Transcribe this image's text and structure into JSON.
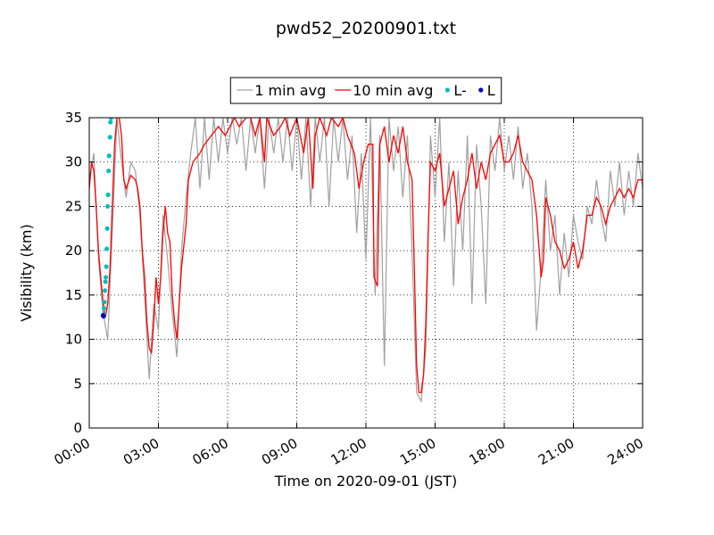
{
  "chart_data": {
    "type": "line",
    "title": "pwd52_20200901.txt",
    "xlabel": "Time on 2020-09-01 (JST)",
    "ylabel": "Visibility (km)",
    "xlim": [
      0,
      24
    ],
    "ylim": [
      0,
      35
    ],
    "xticks": [
      {
        "value": 0,
        "label": "00:00"
      },
      {
        "value": 3,
        "label": "03:00"
      },
      {
        "value": 6,
        "label": "06:00"
      },
      {
        "value": 9,
        "label": "09:00"
      },
      {
        "value": 12,
        "label": "12:00"
      },
      {
        "value": 15,
        "label": "15:00"
      },
      {
        "value": 18,
        "label": "18:00"
      },
      {
        "value": 21,
        "label": "21:00"
      },
      {
        "value": 24,
        "label": "24:00"
      }
    ],
    "yticks": [
      0,
      5,
      10,
      15,
      20,
      25,
      30,
      35
    ],
    "grid": true,
    "legend": "top",
    "series": [
      {
        "name": "1 min avg",
        "color": "#a0a0a0",
        "kind": "line",
        "x": [
          0,
          0.2,
          0.4,
          0.6,
          0.8,
          1,
          1.2,
          1.4,
          1.6,
          1.8,
          2,
          2.2,
          2.4,
          2.6,
          2.8,
          3,
          3.2,
          3.4,
          3.6,
          3.8,
          4,
          4.2,
          4.4,
          4.6,
          4.8,
          5,
          5.2,
          5.4,
          5.6,
          5.8,
          6,
          6.2,
          6.4,
          6.6,
          6.8,
          7,
          7.2,
          7.4,
          7.6,
          7.8,
          8,
          8.2,
          8.4,
          8.6,
          8.8,
          9,
          9.2,
          9.4,
          9.6,
          9.8,
          10,
          10.2,
          10.4,
          10.6,
          10.8,
          11,
          11.2,
          11.4,
          11.6,
          11.8,
          12,
          12.2,
          12.4,
          12.6,
          12.8,
          13,
          13.2,
          13.4,
          13.6,
          13.8,
          14,
          14.2,
          14.4,
          14.6,
          14.8,
          15,
          15.2,
          15.4,
          15.6,
          15.8,
          16,
          16.2,
          16.4,
          16.6,
          16.8,
          17,
          17.2,
          17.4,
          17.6,
          17.8,
          18,
          18.2,
          18.4,
          18.6,
          18.8,
          19,
          19.2,
          19.4,
          19.6,
          19.8,
          20,
          20.2,
          20.4,
          20.6,
          20.8,
          21,
          21.2,
          21.4,
          21.6,
          21.8,
          22,
          22.2,
          22.4,
          22.6,
          22.8,
          23,
          23.2,
          23.4,
          23.6,
          23.8,
          24
        ],
        "values": [
          28,
          31,
          19,
          13,
          10,
          22,
          35,
          30,
          26,
          30,
          29,
          24,
          15,
          5.5,
          14,
          11,
          24,
          19,
          13,
          8,
          20,
          26,
          31,
          35,
          27,
          35,
          28,
          35,
          30,
          35,
          31,
          35,
          32,
          35,
          29,
          35,
          31,
          35,
          27,
          35,
          31,
          35,
          30,
          35,
          29,
          35,
          28,
          35,
          25,
          35,
          30,
          35,
          25,
          35,
          30,
          35,
          28,
          33,
          22,
          31,
          19,
          35,
          15,
          33,
          7,
          35,
          29,
          34,
          26,
          33,
          20,
          4,
          3,
          9,
          33,
          26,
          35,
          21,
          30,
          16,
          29,
          20,
          33,
          14,
          32,
          25,
          14,
          33,
          29,
          35,
          29,
          33,
          28,
          34,
          27,
          31,
          25,
          11,
          18,
          28,
          20,
          24,
          15,
          22,
          17,
          24,
          21,
          19,
          25,
          23,
          28,
          24,
          21,
          29,
          25,
          30,
          24,
          29,
          25,
          31,
          27
        ]
      },
      {
        "name": "10 min avg",
        "color": "#ff0000",
        "kind": "line",
        "x": [
          0,
          0.1,
          0.2,
          0.3,
          0.4,
          0.5,
          0.6,
          0.7,
          0.8,
          0.9,
          1,
          1.1,
          1.2,
          1.3,
          1.4,
          1.5,
          1.6,
          1.8,
          2,
          2.1,
          2.2,
          2.3,
          2.4,
          2.5,
          2.6,
          2.7,
          2.8,
          2.9,
          3,
          3.1,
          3.2,
          3.3,
          3.4,
          3.5,
          3.6,
          3.7,
          3.8,
          3.9,
          4,
          4.2,
          4.3,
          4.5,
          4.8,
          5,
          5.3,
          5.6,
          5.9,
          6.1,
          6.3,
          6.5,
          6.8,
          7,
          7.2,
          7.4,
          7.6,
          7.7,
          8,
          8.3,
          8.5,
          8.7,
          9,
          9.3,
          9.5,
          9.7,
          9.8,
          10,
          10.3,
          10.5,
          10.8,
          11,
          11.2,
          11.5,
          11.7,
          11.9,
          12.1,
          12.3,
          12.35,
          12.5,
          12.6,
          12.8,
          13,
          13.2,
          13.4,
          13.6,
          13.8,
          14,
          14.1,
          14.2,
          14.3,
          14.4,
          14.5,
          14.6,
          14.7,
          14.8,
          15,
          15.2,
          15.4,
          15.6,
          15.8,
          16,
          16.2,
          16.4,
          16.6,
          16.8,
          17,
          17.2,
          17.4,
          17.6,
          17.8,
          18,
          18.2,
          18.4,
          18.6,
          18.8,
          19,
          19.2,
          19.4,
          19.6,
          19.7,
          19.8,
          20,
          20.2,
          20.4,
          20.6,
          20.8,
          21,
          21.2,
          21.4,
          21.6,
          21.8,
          22,
          22.2,
          22.4,
          22.6,
          22.8,
          23,
          23.2,
          23.4,
          23.6,
          23.8,
          24
        ],
        "values": [
          27,
          30,
          29,
          25,
          20,
          17,
          14,
          12.5,
          14,
          18,
          25,
          32,
          35,
          35,
          33,
          28,
          27,
          28.5,
          28,
          27,
          25,
          20,
          17,
          12,
          9,
          8.5,
          12,
          17,
          14,
          17,
          22,
          25,
          22,
          21,
          15,
          12,
          10,
          14,
          18,
          23,
          28,
          30,
          31,
          32,
          33,
          34,
          33,
          34,
          35,
          34,
          35,
          35,
          33,
          35,
          30,
          35,
          33,
          34,
          35,
          33,
          35,
          31,
          35,
          27,
          33,
          35,
          33,
          35,
          34,
          35,
          33,
          31,
          27,
          30,
          32,
          32,
          17,
          16,
          32,
          34,
          30,
          33,
          31,
          34,
          30,
          28,
          18,
          7,
          4,
          4,
          6,
          12,
          22,
          30,
          29,
          31,
          25,
          27,
          29,
          23,
          26,
          28,
          31,
          27,
          30,
          28,
          31,
          32,
          33,
          30,
          30,
          31,
          33,
          30,
          29,
          28,
          24,
          17,
          19,
          26,
          24,
          21,
          20,
          18,
          19,
          21,
          18,
          20,
          24,
          24,
          26,
          25,
          23,
          25,
          26,
          27,
          26,
          27,
          26,
          28,
          28
        ]
      },
      {
        "name": "L-",
        "color": "#00bfbf",
        "kind": "scatter",
        "x": [
          0.62,
          0.64,
          0.66,
          0.68,
          0.7,
          0.72,
          0.74,
          0.76,
          0.78,
          0.8,
          0.82,
          0.84,
          0.86,
          0.9,
          0.92,
          0.95
        ],
        "values": [
          12.8,
          13.5,
          14.2,
          15.5,
          16.5,
          17,
          18.2,
          20.2,
          22.5,
          25,
          26.3,
          29,
          30.7,
          32.8,
          34.5,
          35
        ]
      },
      {
        "name": "L",
        "color": "#0000cc",
        "kind": "scatter",
        "x": [
          0.6,
          0.62
        ],
        "values": [
          12.7,
          12.6
        ]
      }
    ]
  }
}
